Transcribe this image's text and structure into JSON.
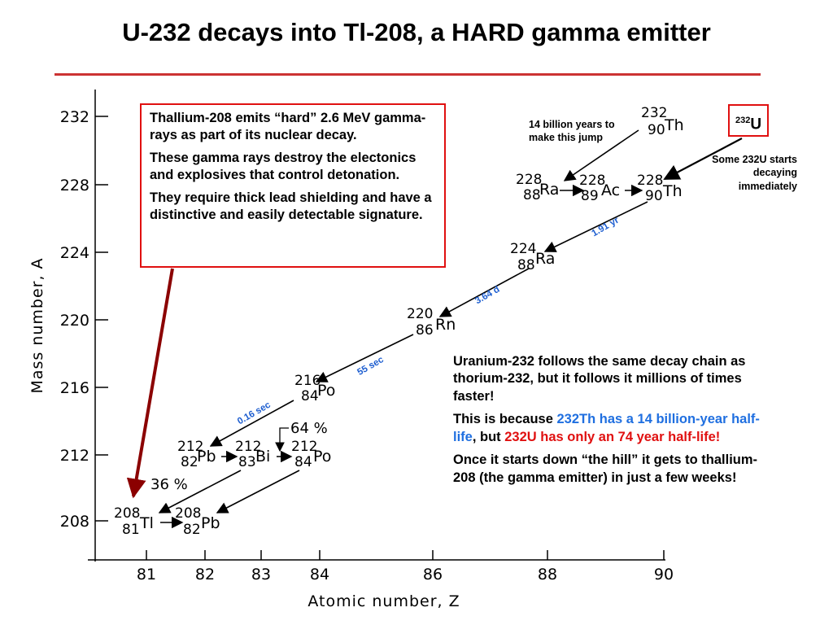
{
  "title": "U-232 decays into Tl-208, a HARD gamma emitter",
  "axes": {
    "ylabel": "Mass number,  A",
    "xlabel": "Atomic number,  Z",
    "yticks": [
      "232",
      "228",
      "224",
      "220",
      "216",
      "212",
      "208"
    ],
    "xticks": [
      "81",
      "82",
      "83",
      "84",
      "86",
      "88",
      "90"
    ]
  },
  "nuclides": {
    "th232": {
      "a": "232",
      "z": "90",
      "s": "Th"
    },
    "th228": {
      "a": "228",
      "z": "90",
      "s": "Th"
    },
    "ac228": {
      "a": "228",
      "z": "89",
      "s": "Ac"
    },
    "ra228": {
      "a": "228",
      "z": "88",
      "s": "Ra"
    },
    "ra224": {
      "a": "224",
      "z": "88",
      "s": "Ra"
    },
    "rn220": {
      "a": "220",
      "z": "86",
      "s": "Rn"
    },
    "po216": {
      "a": "216",
      "z": "84",
      "s": "Po"
    },
    "pb212": {
      "a": "212",
      "z": "82",
      "s": "Pb"
    },
    "bi212": {
      "a": "212",
      "z": "83",
      "s": "Bi"
    },
    "po212": {
      "a": "212",
      "z": "84",
      "s": "Po"
    },
    "tl208": {
      "a": "208",
      "z": "81",
      "s": "Tl"
    },
    "pb208": {
      "a": "208",
      "z": "82",
      "s": "Pb"
    }
  },
  "branches": {
    "beta": "64 %",
    "alpha": "36 %"
  },
  "half_lives": {
    "th228": "1.91 yr",
    "ra224": "3.64 d",
    "rn220": "55 sec",
    "po216": "0.16 sec"
  },
  "callout": {
    "p1": "Thallium-208 emits “hard” 2.6 MeV gamma-rays as part of its nuclear decay.",
    "p2": "These gamma rays destroy the electonics and explosives that control detonation.",
    "p3": "They require thick lead shielding and have a distinctive and easily detectable signature."
  },
  "note_th": "14 billion years to make this jump",
  "u232": {
    "mass": "232",
    "symbol": "U"
  },
  "note_u": "Some 232U starts decaying immediately",
  "right_text": {
    "p1": "Uranium-232 follows the same decay chain as thorium-232, but it follows it millions of times faster!",
    "p2_a": "This is because ",
    "p2_b": "232Th has a 14 billion-year half-life",
    "p2_c": ", but ",
    "p2_d": "232U has only an 74 year half-life!",
    "p3": "Once it starts down “the hill” it gets to thallium-208 (the gamma emitter) in just a few weeks!"
  },
  "colors": {
    "accent_red": "#e01010",
    "title_rule": "#cc3333",
    "blue_text": "#1f6fe0",
    "pointer": "#8b0000"
  }
}
